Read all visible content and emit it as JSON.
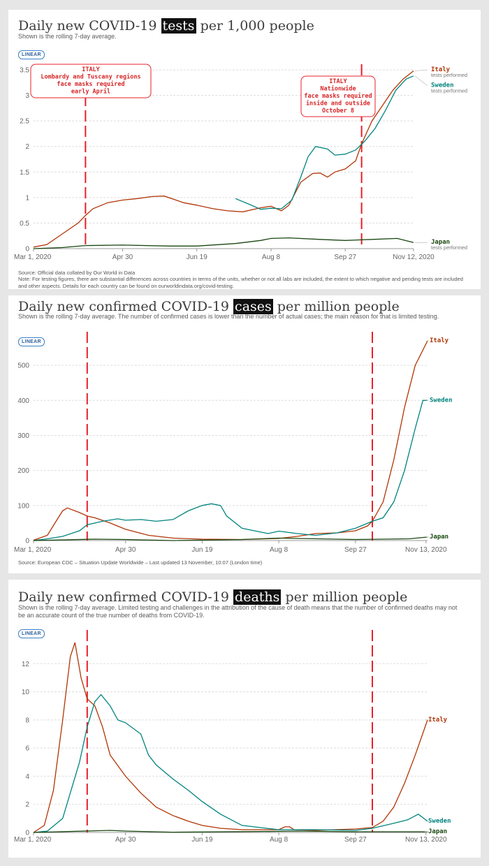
{
  "chart_data": [
    {
      "type": "line",
      "title_pre": "Daily new COVID-19 ",
      "title_hl": "tests",
      "title_post": " per 1,000 people",
      "subtitle": "Shown is the rolling 7-day average.",
      "scale_label": "LINEAR",
      "xlabels": [
        "Mar 1, 2020",
        "Apr 30",
        "Jun 19",
        "Aug 8",
        "Sep 27",
        "Nov 12, 2020"
      ],
      "ylim": [
        0,
        3.5
      ],
      "yticks": [
        0,
        0.5,
        1,
        1.5,
        2,
        2.5,
        3,
        3.5
      ],
      "ytick_labels": [
        "0",
        "0.5",
        "1",
        "1.5",
        "2",
        "2.5",
        "3",
        "3.5"
      ],
      "markers": [
        "Apr 5",
        "Oct 8"
      ],
      "annotations": [
        {
          "lines": [
            "ITALY",
            "Lombardy and Tuscany regions",
            "face masks required",
            "early April"
          ]
        },
        {
          "lines": [
            "ITALY",
            "Nationwide",
            "face masks required",
            "inside and outside",
            "October 8"
          ]
        }
      ],
      "series": [
        {
          "name": "Italy",
          "sublabel": "tests performed",
          "color": "#b13507",
          "points": [
            [
              "Mar 1",
              0.03
            ],
            [
              "Mar 10",
              0.08
            ],
            [
              "Mar 20",
              0.28
            ],
            [
              "Mar 31",
              0.5
            ],
            [
              "Apr 5",
              0.65
            ],
            [
              "Apr 10",
              0.78
            ],
            [
              "Apr 20",
              0.9
            ],
            [
              "Apr 30",
              0.95
            ],
            [
              "May 10",
              0.98
            ],
            [
              "May 20",
              1.02
            ],
            [
              "May 28",
              1.03
            ],
            [
              "Jun 5",
              0.95
            ],
            [
              "Jun 10",
              0.9
            ],
            [
              "Jun 19",
              0.85
            ],
            [
              "Jun 30",
              0.78
            ],
            [
              "Jul 10",
              0.74
            ],
            [
              "Jul 20",
              0.72
            ],
            [
              "Aug 1",
              0.8
            ],
            [
              "Aug 8",
              0.83
            ],
            [
              "Aug 15",
              0.74
            ],
            [
              "Aug 20",
              0.85
            ],
            [
              "Aug 28",
              1.3
            ],
            [
              "Sep 5",
              1.47
            ],
            [
              "Sep 10",
              1.48
            ],
            [
              "Sep 15",
              1.4
            ],
            [
              "Sep 20",
              1.5
            ],
            [
              "Sep 27",
              1.56
            ],
            [
              "Oct 4",
              1.72
            ],
            [
              "Oct 8",
              2.05
            ],
            [
              "Oct 15",
              2.5
            ],
            [
              "Oct 22",
              2.8
            ],
            [
              "Oct 29",
              3.1
            ],
            [
              "Nov 5",
              3.32
            ],
            [
              "Nov 12",
              3.48
            ]
          ]
        },
        {
          "name": "Sweden",
          "sublabel": "tests performed",
          "color": "#00847e",
          "points": [
            [
              "Jul 15",
              0.98
            ],
            [
              "Jul 25",
              0.86
            ],
            [
              "Aug 1",
              0.77
            ],
            [
              "Aug 8",
              0.79
            ],
            [
              "Aug 15",
              0.78
            ],
            [
              "Aug 22",
              0.95
            ],
            [
              "Aug 28",
              1.4
            ],
            [
              "Sep 2",
              1.8
            ],
            [
              "Sep 7",
              2.0
            ],
            [
              "Sep 15",
              1.95
            ],
            [
              "Sep 20",
              1.83
            ],
            [
              "Sep 27",
              1.85
            ],
            [
              "Oct 4",
              1.93
            ],
            [
              "Oct 10",
              2.1
            ],
            [
              "Oct 17",
              2.35
            ],
            [
              "Oct 24",
              2.7
            ],
            [
              "Oct 31",
              3.1
            ],
            [
              "Nov 7",
              3.32
            ],
            [
              "Nov 12",
              3.38
            ]
          ]
        },
        {
          "name": "Japan",
          "sublabel": "tests performed",
          "color": "#18470f",
          "points": [
            [
              "Mar 1",
              0.0
            ],
            [
              "Mar 20",
              0.02
            ],
            [
              "Apr 5",
              0.06
            ],
            [
              "Apr 30",
              0.07
            ],
            [
              "May 31",
              0.05
            ],
            [
              "Jun 19",
              0.05
            ],
            [
              "Jul 15",
              0.1
            ],
            [
              "Aug 1",
              0.16
            ],
            [
              "Aug 8",
              0.2
            ],
            [
              "Aug 20",
              0.21
            ],
            [
              "Sep 10",
              0.18
            ],
            [
              "Sep 27",
              0.16
            ],
            [
              "Oct 15",
              0.18
            ],
            [
              "Nov 1",
              0.2
            ],
            [
              "Nov 12",
              0.12
            ]
          ]
        }
      ],
      "source": "Source: Official data collated by Our World in Data",
      "note": "Note: For testing figures, there are substantial differences across countries in terms of the units, whether or not all labs are included, the extent to which negative and pending tests are included and other aspects. Details for each country can be found on ourworldindata.org/covid-testing."
    },
    {
      "type": "line",
      "title_pre": "Daily new confirmed COVID-19 ",
      "title_hl": "cases",
      "title_post": " per million people",
      "subtitle": "Shown is the rolling 7-day average. The number of confirmed cases is lower than the number of actual cases; the main reason for that is limited testing.",
      "scale_label": "LINEAR",
      "xlabels": [
        "Mar 1, 2020",
        "Apr 30",
        "Jun 19",
        "Aug 8",
        "Sep 27",
        "Nov 13, 2020"
      ],
      "ylim": [
        0,
        580
      ],
      "yticks": [
        0,
        100,
        200,
        300,
        400,
        500
      ],
      "ytick_labels": [
        "0",
        "100",
        "200",
        "300",
        "400",
        "500"
      ],
      "markers": [
        "Apr 5",
        "Oct 8"
      ],
      "series": [
        {
          "name": "Italy",
          "color": "#b13507",
          "points": [
            [
              "Mar 1",
              1
            ],
            [
              "Mar 10",
              15
            ],
            [
              "Mar 15",
              50
            ],
            [
              "Mar 20",
              85
            ],
            [
              "Mar 23",
              93
            ],
            [
              "Mar 31",
              80
            ],
            [
              "Apr 5",
              70
            ],
            [
              "Apr 10",
              65
            ],
            [
              "Apr 20",
              50
            ],
            [
              "Apr 30",
              32
            ],
            [
              "May 15",
              15
            ],
            [
              "May 31",
              7
            ],
            [
              "Jun 19",
              4
            ],
            [
              "Jul 15",
              3
            ],
            [
              "Aug 8",
              6
            ],
            [
              "Aug 20",
              12
            ],
            [
              "Sep 1",
              20
            ],
            [
              "Sep 15",
              22
            ],
            [
              "Sep 27",
              28
            ],
            [
              "Oct 5",
              42
            ],
            [
              "Oct 8",
              55
            ],
            [
              "Oct 15",
              110
            ],
            [
              "Oct 22",
              230
            ],
            [
              "Oct 29",
              380
            ],
            [
              "Nov 5",
              500
            ],
            [
              "Nov 13",
              570
            ]
          ]
        },
        {
          "name": "Sweden",
          "color": "#00847e",
          "points": [
            [
              "Mar 1",
              0
            ],
            [
              "Mar 10",
              5
            ],
            [
              "Mar 20",
              12
            ],
            [
              "Mar 31",
              28
            ],
            [
              "Apr 5",
              45
            ],
            [
              "Apr 15",
              55
            ],
            [
              "Apr 25",
              62
            ],
            [
              "Apr 30",
              58
            ],
            [
              "May 10",
              60
            ],
            [
              "May 20",
              55
            ],
            [
              "May 31",
              60
            ],
            [
              "Jun 10",
              85
            ],
            [
              "Jun 19",
              100
            ],
            [
              "Jun 25",
              105
            ],
            [
              "Jul 1",
              100
            ],
            [
              "Jul 5",
              70
            ],
            [
              "Jul 15",
              35
            ],
            [
              "Aug 1",
              20
            ],
            [
              "Aug 8",
              27
            ],
            [
              "Aug 20",
              20
            ],
            [
              "Sep 1",
              15
            ],
            [
              "Sep 15",
              22
            ],
            [
              "Sep 27",
              35
            ],
            [
              "Oct 8",
              55
            ],
            [
              "Oct 15",
              65
            ],
            [
              "Oct 22",
              110
            ],
            [
              "Oct 29",
              200
            ],
            [
              "Nov 5",
              320
            ],
            [
              "Nov 10",
              400
            ],
            [
              "Nov 13",
              400
            ]
          ]
        },
        {
          "name": "Japan",
          "color": "#18470f",
          "points": [
            [
              "Mar 1",
              0
            ],
            [
              "Apr 10",
              4
            ],
            [
              "Apr 30",
              3
            ],
            [
              "May 31",
              0
            ],
            [
              "Jul 15",
              3
            ],
            [
              "Aug 8",
              7
            ],
            [
              "Aug 20",
              6
            ],
            [
              "Sep 27",
              3
            ],
            [
              "Oct 15",
              4
            ],
            [
              "Nov 1",
              5
            ],
            [
              "Nov 13",
              10
            ]
          ]
        }
      ],
      "source": "Source: European CDC – Situation Update Worldwide – Last updated 13 November, 10:07 (London time)"
    },
    {
      "type": "line",
      "title_pre": "Daily new confirmed COVID-19 ",
      "title_hl": "deaths",
      "title_post": " per million people",
      "subtitle": "Shown is the rolling 7-day average. Limited testing and challenges in the attribution of the cause of death means that the number of confirmed deaths may not be an accurate count of the true number of deaths from COVID-19.",
      "scale_label": "LINEAR",
      "xlabels": [
        "Mar 1, 2020",
        "Apr 30",
        "Jun 19",
        "Aug 8",
        "Sep 27",
        "Nov 13, 2020"
      ],
      "ylim": [
        0,
        14
      ],
      "yticks": [
        0,
        2,
        4,
        6,
        8,
        10,
        12
      ],
      "ytick_labels": [
        "0",
        "2",
        "4",
        "6",
        "8",
        "10",
        "12"
      ],
      "markers": [
        "Apr 5",
        "Oct 8"
      ],
      "series": [
        {
          "name": "Italy",
          "color": "#b13507",
          "points": [
            [
              "Mar 1",
              0
            ],
            [
              "Mar 8",
              0.5
            ],
            [
              "Mar 14",
              3
            ],
            [
              "Mar 20",
              8
            ],
            [
              "Mar 25",
              12.5
            ],
            [
              "Mar 28",
              13.5
            ],
            [
              "Apr 1",
              11
            ],
            [
              "Apr 5",
              9.5
            ],
            [
              "Apr 10",
              9
            ],
            [
              "Apr 15",
              7.5
            ],
            [
              "Apr 20",
              5.5
            ],
            [
              "Apr 30",
              4
            ],
            [
              "May 10",
              2.8
            ],
            [
              "May 20",
              1.8
            ],
            [
              "May 31",
              1.2
            ],
            [
              "Jun 10",
              0.8
            ],
            [
              "Jun 19",
              0.5
            ],
            [
              "Jul 1",
              0.3
            ],
            [
              "Jul 15",
              0.2
            ],
            [
              "Aug 8",
              0.2
            ],
            [
              "Aug 12",
              0.4
            ],
            [
              "Aug 15",
              0.4
            ],
            [
              "Aug 18",
              0.2
            ],
            [
              "Sep 1",
              0.15
            ],
            [
              "Sep 27",
              0.25
            ],
            [
              "Oct 8",
              0.35
            ],
            [
              "Oct 15",
              0.8
            ],
            [
              "Oct 22",
              1.8
            ],
            [
              "Oct 29",
              3.5
            ],
            [
              "Nov 5",
              5.5
            ],
            [
              "Nov 13",
              8
            ]
          ]
        },
        {
          "name": "Sweden",
          "color": "#00847e",
          "points": [
            [
              "Mar 1",
              0
            ],
            [
              "Mar 10",
              0.1
            ],
            [
              "Mar 20",
              1
            ],
            [
              "Mar 31",
              5
            ],
            [
              "Apr 5",
              7.5
            ],
            [
              "Apr 10",
              9.3
            ],
            [
              "Apr 14",
              9.8
            ],
            [
              "Apr 20",
              9
            ],
            [
              "Apr 25",
              8
            ],
            [
              "Apr 30",
              7.8
            ],
            [
              "May 10",
              7
            ],
            [
              "May 15",
              5.5
            ],
            [
              "May 20",
              4.8
            ],
            [
              "May 31",
              3.8
            ],
            [
              "Jun 10",
              3
            ],
            [
              "Jun 19",
              2.2
            ],
            [
              "Jul 1",
              1.3
            ],
            [
              "Jul 15",
              0.5
            ],
            [
              "Jul 31",
              0.3
            ],
            [
              "Aug 8",
              0.2
            ],
            [
              "Aug 20",
              0.2
            ],
            [
              "Sep 1",
              0.2
            ],
            [
              "Sep 27",
              0.15
            ],
            [
              "Oct 8",
              0.3
            ],
            [
              "Oct 20",
              0.6
            ],
            [
              "Oct 31",
              0.9
            ],
            [
              "Nov 7",
              1.3
            ],
            [
              "Nov 13",
              0.8
            ]
          ]
        },
        {
          "name": "Japan",
          "color": "#18470f",
          "points": [
            [
              "Mar 1",
              0
            ],
            [
              "Apr 20",
              0.15
            ],
            [
              "Apr 30",
              0.1
            ],
            [
              "May 31",
              0.02
            ],
            [
              "Aug 8",
              0.08
            ],
            [
              "Aug 20",
              0.1
            ],
            [
              "Sep 27",
              0.05
            ],
            [
              "Nov 13",
              0.05
            ]
          ]
        }
      ]
    }
  ]
}
